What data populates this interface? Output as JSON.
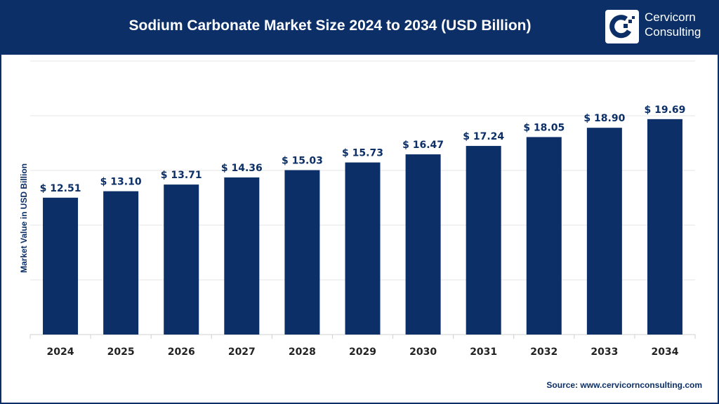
{
  "header": {
    "title": "Sodium Carbonate Market Size 2024 to 2034 (USD Billion)",
    "logo_text_line1": "Cervicorn",
    "logo_text_line2": "Consulting"
  },
  "source": "Source: www.cervicornconsulting.com",
  "colors": {
    "bar": "#0b2f66",
    "header": "#0b2f66",
    "grid": "#e6e6e6"
  },
  "chart_data": {
    "type": "bar",
    "title": "Sodium Carbonate Market Size 2024 to 2034 (USD Billion)",
    "xlabel": "",
    "ylabel": "Market Value in USD Billion",
    "categories": [
      "2024",
      "2025",
      "2026",
      "2027",
      "2028",
      "2029",
      "2030",
      "2031",
      "2032",
      "2033",
      "2034"
    ],
    "values": [
      12.51,
      13.1,
      13.71,
      14.36,
      15.03,
      15.73,
      16.47,
      17.24,
      18.05,
      18.9,
      19.69
    ],
    "data_labels": [
      "$ 12.51",
      "$ 13.10",
      "$ 13.71",
      "$ 14.36",
      "$ 15.03",
      "$ 15.73",
      "$ 16.47",
      "$ 17.24",
      "$ 18.05",
      "$ 18.90",
      "$ 19.69"
    ],
    "ylim": [
      0,
      25
    ],
    "grid": true,
    "y_tick_labels_shown": false
  }
}
